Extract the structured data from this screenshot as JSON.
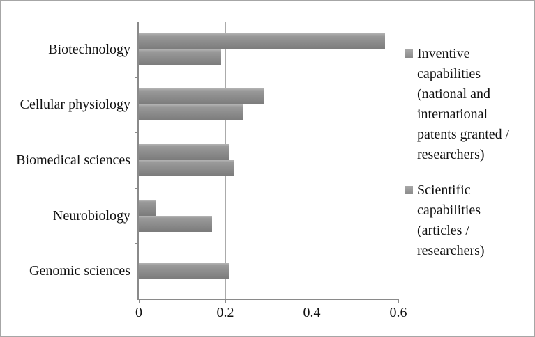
{
  "figure": {
    "background": "#ffffff",
    "border_color": "#a6a6a6"
  },
  "chart_data": {
    "type": "bar",
    "orientation": "horizontal",
    "title": "",
    "xlabel": "",
    "ylabel": "",
    "categories": [
      "Biotechnology",
      "Cellular physiology",
      "Biomedical sciences",
      "Neurobiology",
      "Genomic sciences"
    ],
    "series": [
      {
        "name": "Inventive capabilities (national and international patents granted / researchers)",
        "values": [
          0.57,
          0.29,
          0.21,
          0.04,
          0.0
        ]
      },
      {
        "name": "Scientific capabilities (articles / researchers)",
        "values": [
          0.19,
          0.24,
          0.22,
          0.17,
          0.21
        ]
      }
    ],
    "xlim": [
      0,
      0.6
    ],
    "xticks": [
      0,
      0.2,
      0.4,
      0.6
    ],
    "xtick_labels": [
      "0",
      "0.2",
      "0.4",
      "0.6"
    ],
    "gridlines_at": [
      0.2,
      0.4
    ],
    "grid": "vertical",
    "legend_position": "right",
    "bar_color": "#8c8c8c",
    "axis_color": "#8a8a8a",
    "gridline_color": "#ababab"
  }
}
